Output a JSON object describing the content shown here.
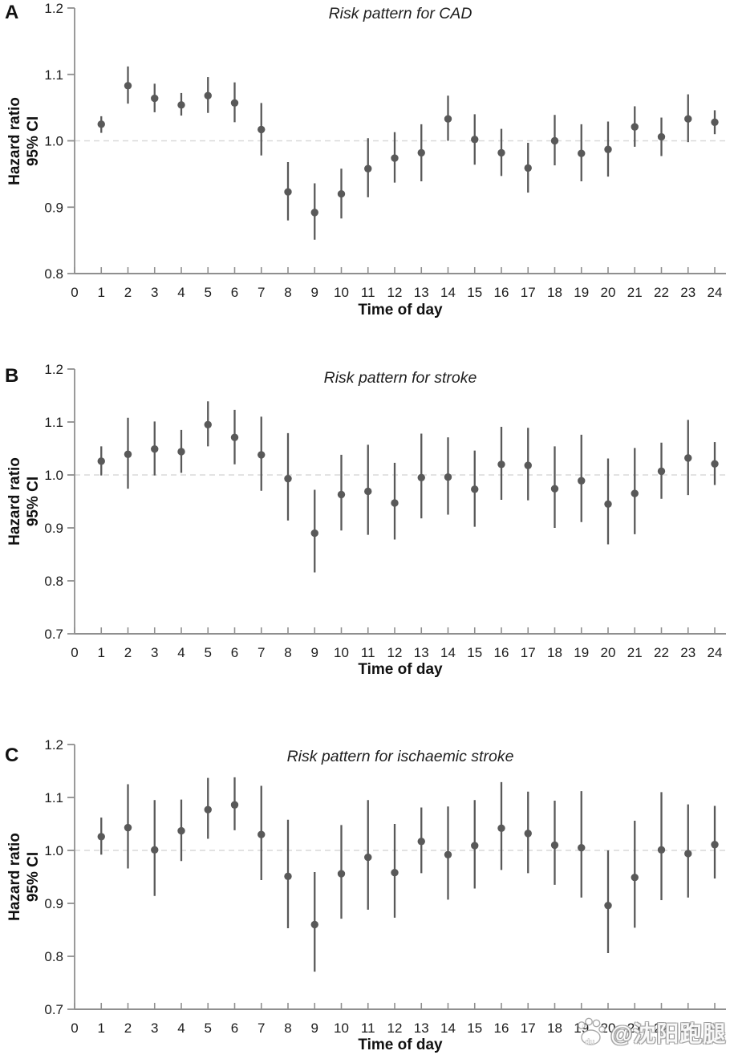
{
  "figure": {
    "background": "#ffffff",
    "x_axis_label": "Time of day",
    "y_axis_label_line1": "Hazard ratio",
    "y_axis_label_line2": "95% CI"
  },
  "colors": {
    "marker": "#595959",
    "axis": "#8f8f8f",
    "reference_line": "#d9d9d9",
    "text": "#1c1c1c"
  },
  "watermark": {
    "icon": "paw-icon",
    "icon_sub_text": "du",
    "text": "@沈阳跑腿"
  },
  "chart_data": [
    {
      "type": "scatter",
      "panel_label": "A",
      "title": "Risk pattern for CAD",
      "xlabel": "Time of day",
      "ylabel": "Hazard ratio 95% CI",
      "ylabel_line1": "Hazard ratio",
      "ylabel_line2": "95% CI",
      "xlim": [
        0,
        24.5
      ],
      "ylim": [
        0.8,
        1.2
      ],
      "ref_line": 1.0,
      "grid": "off",
      "xticks": [
        "0",
        "1",
        "2",
        "3",
        "4",
        "5",
        "6",
        "7",
        "8",
        "9",
        "10",
        "11",
        "12",
        "13",
        "14",
        "15",
        "16",
        "17",
        "18",
        "19",
        "20",
        "21",
        "22",
        "23",
        "24"
      ],
      "yticks": [
        "0.8",
        "0.9",
        "1.0",
        "1.1",
        "1.2"
      ],
      "x": [
        1,
        2,
        3,
        4,
        5,
        6,
        7,
        8,
        9,
        10,
        11,
        12,
        13,
        14,
        15,
        16,
        17,
        18,
        19,
        20,
        21,
        22,
        23,
        24
      ],
      "hr": [
        1.025,
        1.083,
        1.064,
        1.054,
        1.068,
        1.057,
        1.017,
        0.923,
        0.892,
        0.92,
        0.958,
        0.974,
        0.982,
        1.033,
        1.002,
        0.982,
        0.959,
        1.0,
        0.981,
        0.987,
        1.021,
        1.006,
        1.033,
        1.028
      ],
      "ci_low": [
        1.012,
        1.056,
        1.043,
        1.038,
        1.042,
        1.028,
        0.978,
        0.88,
        0.851,
        0.883,
        0.915,
        0.937,
        0.939,
        1.0,
        0.964,
        0.947,
        0.922,
        0.963,
        0.939,
        0.946,
        0.991,
        0.977,
        0.998,
        1.01
      ],
      "ci_high": [
        1.037,
        1.112,
        1.086,
        1.072,
        1.096,
        1.088,
        1.057,
        0.968,
        0.936,
        0.958,
        1.004,
        1.013,
        1.025,
        1.068,
        1.04,
        1.018,
        0.997,
        1.039,
        1.025,
        1.029,
        1.052,
        1.035,
        1.07,
        1.046
      ]
    },
    {
      "type": "scatter",
      "panel_label": "B",
      "title": "Risk pattern for stroke",
      "xlabel": "Time of day",
      "ylabel": "Hazard ratio 95% CI",
      "ylabel_line1": "Hazard ratio",
      "ylabel_line2": "95% CI",
      "xlim": [
        0,
        24.5
      ],
      "ylim": [
        0.7,
        1.2
      ],
      "ref_line": 1.0,
      "grid": "off",
      "xticks": [
        "0",
        "1",
        "2",
        "3",
        "4",
        "5",
        "6",
        "7",
        "8",
        "9",
        "10",
        "11",
        "12",
        "13",
        "14",
        "15",
        "16",
        "17",
        "18",
        "19",
        "20",
        "21",
        "22",
        "23",
        "24"
      ],
      "yticks": [
        "0.7",
        "0.8",
        "0.9",
        "1.0",
        "1.1",
        "1.2"
      ],
      "x": [
        1,
        2,
        3,
        4,
        5,
        6,
        7,
        8,
        9,
        10,
        11,
        12,
        13,
        14,
        15,
        16,
        17,
        18,
        19,
        20,
        21,
        22,
        23,
        24
      ],
      "hr": [
        1.026,
        1.039,
        1.049,
        1.044,
        1.095,
        1.071,
        1.038,
        0.993,
        0.89,
        0.963,
        0.969,
        0.947,
        0.995,
        0.996,
        0.973,
        1.02,
        1.018,
        0.974,
        0.989,
        0.945,
        0.965,
        1.007,
        1.032,
        1.021
      ],
      "ci_low": [
        0.999,
        0.974,
        0.999,
        1.004,
        1.054,
        1.02,
        0.97,
        0.914,
        0.816,
        0.895,
        0.887,
        0.878,
        0.918,
        0.925,
        0.902,
        0.953,
        0.952,
        0.9,
        0.911,
        0.869,
        0.888,
        0.955,
        0.962,
        0.981
      ],
      "ci_high": [
        1.054,
        1.108,
        1.101,
        1.085,
        1.139,
        1.123,
        1.11,
        1.079,
        0.972,
        1.038,
        1.057,
        1.023,
        1.078,
        1.071,
        1.046,
        1.091,
        1.089,
        1.054,
        1.076,
        1.031,
        1.051,
        1.061,
        1.104,
        1.062
      ]
    },
    {
      "type": "scatter",
      "panel_label": "C",
      "title": "Risk pattern for ischaemic stroke",
      "xlabel": "Time of day",
      "ylabel": "Hazard ratio 95% CI",
      "ylabel_line1": "Hazard ratio",
      "ylabel_line2": "95% CI",
      "xlim": [
        0,
        24.5
      ],
      "ylim": [
        0.7,
        1.2
      ],
      "ref_line": 1.0,
      "grid": "off",
      "xticks": [
        "0",
        "1",
        "2",
        "3",
        "4",
        "5",
        "6",
        "7",
        "8",
        "9",
        "10",
        "11",
        "12",
        "13",
        "14",
        "15",
        "16",
        "17",
        "18",
        "19",
        "20",
        "21",
        "22",
        "23",
        "24"
      ],
      "yticks": [
        "0.7",
        "0.8",
        "0.9",
        "1.0",
        "1.1",
        "1.2"
      ],
      "x": [
        1,
        2,
        3,
        4,
        5,
        6,
        7,
        8,
        9,
        10,
        11,
        12,
        13,
        14,
        15,
        16,
        17,
        18,
        19,
        20,
        21,
        22,
        23,
        24
      ],
      "hr": [
        1.026,
        1.043,
        1.001,
        1.037,
        1.077,
        1.086,
        1.03,
        0.951,
        0.86,
        0.956,
        0.987,
        0.958,
        1.017,
        0.992,
        1.009,
        1.042,
        1.032,
        1.01,
        1.005,
        0.896,
        0.949,
        1.001,
        0.994,
        1.011
      ],
      "ci_low": [
        0.992,
        0.966,
        0.914,
        0.98,
        1.022,
        1.038,
        0.944,
        0.853,
        0.771,
        0.871,
        0.888,
        0.873,
        0.957,
        0.907,
        0.928,
        0.963,
        0.957,
        0.935,
        0.911,
        0.806,
        0.854,
        0.906,
        0.911,
        0.947
      ],
      "ci_high": [
        1.062,
        1.125,
        1.095,
        1.096,
        1.137,
        1.138,
        1.122,
        1.058,
        0.959,
        1.048,
        1.095,
        1.05,
        1.081,
        1.083,
        1.095,
        1.129,
        1.111,
        1.094,
        1.112,
        1.0,
        1.056,
        1.11,
        1.087,
        1.084
      ]
    }
  ]
}
